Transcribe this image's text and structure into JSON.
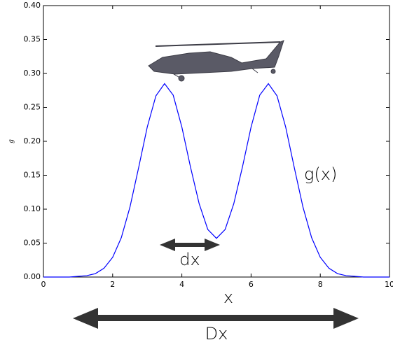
{
  "chart_data": {
    "type": "line",
    "x": [
      0,
      0.25,
      0.5,
      0.75,
      1,
      1.25,
      1.5,
      1.75,
      2,
      2.25,
      2.5,
      2.75,
      3,
      3.25,
      3.5,
      3.75,
      4,
      4.25,
      4.5,
      4.75,
      5,
      5.25,
      5.5,
      5.75,
      6,
      6.25,
      6.5,
      6.75,
      7,
      7.25,
      7.5,
      7.75,
      8,
      8.25,
      8.5,
      8.75,
      9,
      9.25,
      9.5,
      9.75,
      10
    ],
    "series": [
      {
        "color": "#0000ff",
        "values": [
          0,
          0,
          0,
          0,
          0.001,
          0.002,
          0.005,
          0.013,
          0.029,
          0.058,
          0.103,
          0.161,
          0.221,
          0.267,
          0.285,
          0.268,
          0.221,
          0.162,
          0.108,
          0.07,
          0.057,
          0.07,
          0.108,
          0.162,
          0.221,
          0.268,
          0.285,
          0.267,
          0.221,
          0.161,
          0.103,
          0.058,
          0.029,
          0.013,
          0.005,
          0.002,
          0.001,
          0,
          0,
          0,
          0
        ]
      }
    ],
    "xlim": [
      0,
      10
    ],
    "ylim": [
      0,
      0.4
    ],
    "xticks": [
      0,
      2,
      4,
      6,
      8,
      10
    ],
    "yticks": [
      {
        "value": 0,
        "label": "0.00"
      },
      {
        "value": 0.05,
        "label": "0.05"
      },
      {
        "value": 0.1,
        "label": "0.10"
      },
      {
        "value": 0.15,
        "label": "0.15"
      },
      {
        "value": 0.2,
        "label": "0.20"
      },
      {
        "value": 0.25,
        "label": "0.25"
      },
      {
        "value": 0.3,
        "label": "0.30"
      },
      {
        "value": 0.35,
        "label": "0.35"
      },
      {
        "value": 0.4,
        "label": "0.40"
      }
    ],
    "xlabel": "x",
    "ylabel": "g",
    "annotations": [
      "g(x)",
      "dx",
      "Dx"
    ]
  }
}
